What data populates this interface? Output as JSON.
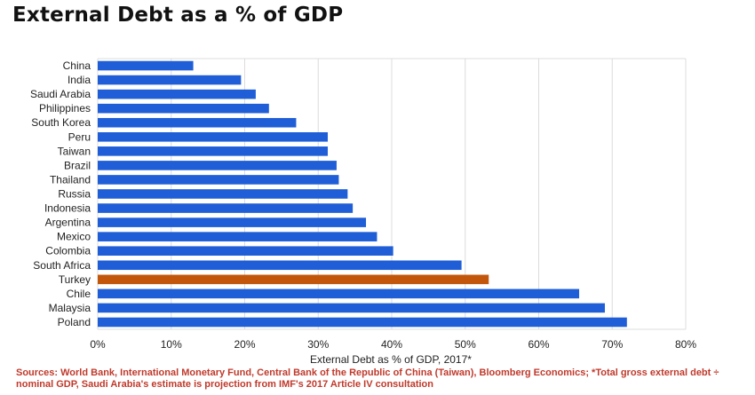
{
  "chart_data": {
    "type": "bar",
    "orientation": "horizontal",
    "title": "External Debt as a % of GDP",
    "xlabel": "External Debt as % of GDP, 2017*",
    "ylabel": "",
    "xlim": [
      0,
      80
    ],
    "xtick_values": [
      0,
      10,
      20,
      30,
      40,
      50,
      60,
      70,
      80
    ],
    "xtick_labels": [
      "0%",
      "10%",
      "20%",
      "30%",
      "40%",
      "50%",
      "60%",
      "70%",
      "80%"
    ],
    "grid": true,
    "categories": [
      "China",
      "India",
      "Saudi Arabia",
      "Philippines",
      "South Korea",
      "Peru",
      "Taiwan",
      "Brazil",
      "Thailand",
      "Russia",
      "Indonesia",
      "Argentina",
      "Mexico",
      "Colombia",
      "South Africa",
      "Turkey",
      "Chile",
      "Malaysia",
      "Poland"
    ],
    "values": [
      13,
      19.5,
      21.5,
      23.3,
      27,
      31.3,
      31.3,
      32.5,
      32.8,
      34,
      34.7,
      36.5,
      38,
      40.2,
      49.5,
      53.2,
      65.5,
      69,
      72
    ],
    "highlight": "Turkey",
    "colors": {
      "bar": "#1f5ed6",
      "highlight": "#c2570c",
      "grid": "#dcdcdc"
    },
    "source_note": "Sources: World Bank, International Monetary Fund, Central Bank of the Republic of China (Taiwan), Bloomberg Economics; *Total gross external debt ÷ nominal GDP, Saudi Arabia's estimate is projection from IMF's 2017 Article IV consultation"
  }
}
